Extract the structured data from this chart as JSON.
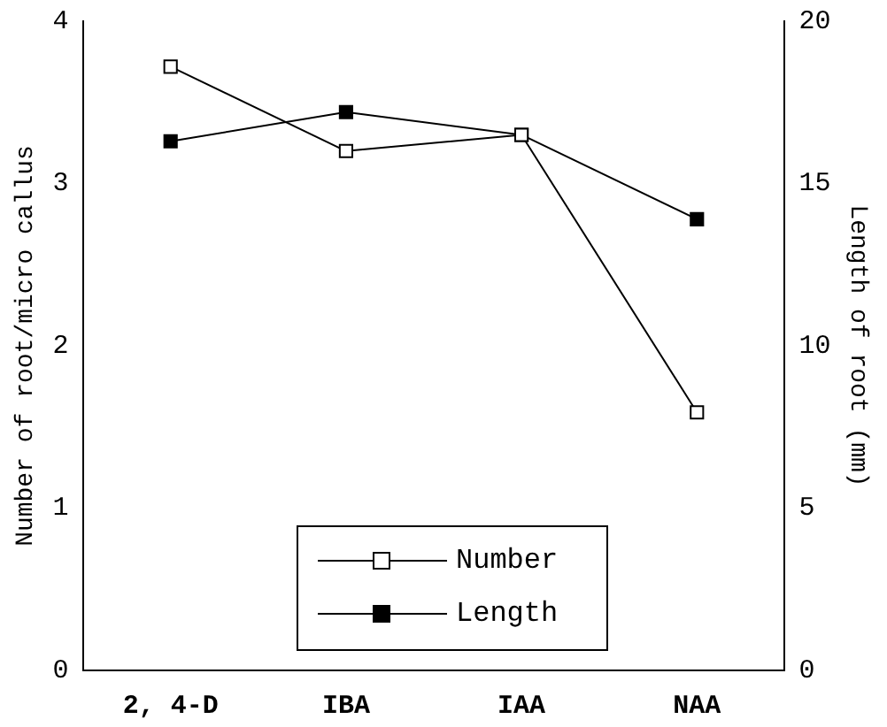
{
  "chart_data": {
    "type": "line",
    "categories": [
      "2, 4-D",
      "IBA",
      "IAA",
      "NAA"
    ],
    "ylabel": "Number of root/micro callus",
    "y2label": "Length of root (mm)",
    "ylim": [
      0,
      4
    ],
    "yticks": [
      0,
      1,
      2,
      3,
      4
    ],
    "y2lim": [
      0,
      20
    ],
    "y2ticks": [
      0,
      5,
      10,
      15,
      20
    ],
    "series": [
      {
        "name": "Number",
        "color": "#000000",
        "values": [
          3.72,
          3.2,
          3.3,
          1.59
        ]
      },
      {
        "name": "Length",
        "color": "#000000",
        "axis": "y2",
        "values": [
          16.3,
          17.2,
          16.5,
          13.9
        ]
      }
    ],
    "marker": "square",
    "legend": "bottom",
    "grid": false
  }
}
